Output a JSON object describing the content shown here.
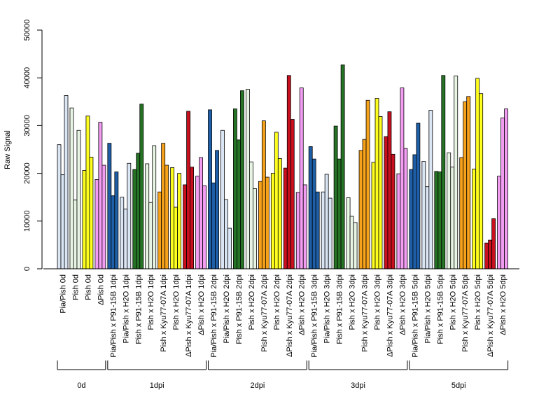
{
  "chart_data": {
    "type": "bar",
    "title": "",
    "xlabel": "",
    "ylabel": "Raw Signal",
    "ylim": [
      0,
      50000
    ],
    "yticks": [
      0,
      10000,
      20000,
      30000,
      40000,
      50000
    ],
    "colors": {
      "Pia/Pish": "#dbe6f5",
      "Pia/Pish x P91-15B": "#1f5fa8",
      "Pia/Pish x H2O": "#dbe6f5",
      "Pish": "#e8f5e4",
      "Pish x P91-15B": "#267326",
      "Pish x H2O": "#e8f5e4",
      "Pish x Kyu77-07A": "#f7a21b",
      "Pish 0d": "#ffff1f",
      "Pish x H2O (yellow)": "#ffff1f",
      "ΔPish x Kyu77-07A": "#c8101e",
      "ΔPish": "#f29cf2"
    },
    "categories": [
      {
        "label": "Pia/Pish 0d",
        "color": "#dbe6f5",
        "values": [
          26000,
          19700,
          36300
        ]
      },
      {
        "label": "Pish 0d",
        "color": "#e8f5e4",
        "values": [
          33700,
          14400,
          29000
        ]
      },
      {
        "label": "Pish 0d",
        "color": "#ffff1f",
        "values": [
          20600,
          32000,
          23400
        ]
      },
      {
        "label": "ΔPish 0d",
        "color": "#f29cf2",
        "values": [
          18700,
          30700,
          21700
        ]
      },
      {
        "label": "Pia/Pish x P91-15B 1dpi",
        "color": "#1f5fa8",
        "values": [
          26300,
          15300,
          20300
        ]
      },
      {
        "label": "Pia/Pish x H2O 1dpi",
        "color": "#dbe6f5",
        "values": [
          15000,
          12500,
          22100
        ]
      },
      {
        "label": "Pish x P91-15B 1dpi",
        "color": "#267326",
        "values": [
          20800,
          24200,
          34500
        ]
      },
      {
        "label": "Pish x H2O 1dpi",
        "color": "#e8f5e4",
        "values": [
          22000,
          13900,
          25800
        ]
      },
      {
        "label": "Pish x Kyu77-07A 1dpi",
        "color": "#f7a21b",
        "values": [
          16100,
          26300,
          21700
        ]
      },
      {
        "label": "Pish x H2O 1dpi",
        "color": "#ffff1f",
        "values": [
          21200,
          12900,
          20000
        ]
      },
      {
        "label": "ΔPish x Kyu77-07A 1dpi",
        "color": "#c8101e",
        "values": [
          17600,
          33000,
          21300
        ]
      },
      {
        "label": "ΔPish x H2O 1dpi",
        "color": "#f29cf2",
        "values": [
          19400,
          23300,
          17400
        ]
      },
      {
        "label": "Pia/Pish x P91-15B 2dpi",
        "color": "#1f5fa8",
        "values": [
          33300,
          18000,
          24800
        ]
      },
      {
        "label": "Pia/Pish x H2O 2dpi",
        "color": "#dbe6f5",
        "values": [
          29000,
          14500,
          8500
        ]
      },
      {
        "label": "Pish x P91-15B 2dpi",
        "color": "#267326",
        "values": [
          33500,
          27000,
          37300
        ]
      },
      {
        "label": "Pish x H2O 2dpi",
        "color": "#e8f5e4",
        "values": [
          37600,
          22400,
          16800
        ]
      },
      {
        "label": "Pish x Kyu77-07A 2dpi",
        "color": "#f7a21b",
        "values": [
          18300,
          31000,
          19200
        ]
      },
      {
        "label": "Pish x H2O 2dpi",
        "color": "#ffff1f",
        "values": [
          20000,
          28600,
          23100
        ]
      },
      {
        "label": "ΔPish x Kyu77-07A 2dpi",
        "color": "#c8101e",
        "values": [
          21100,
          40500,
          31300
        ]
      },
      {
        "label": "ΔPish x H2O 2dpi",
        "color": "#f29cf2",
        "values": [
          16000,
          37900,
          17600
        ]
      },
      {
        "label": "Pia/Pish x P91-15B 3dpi",
        "color": "#1f5fa8",
        "values": [
          25600,
          23000,
          16100
        ]
      },
      {
        "label": "Pia/Pish x H2O 3dpi",
        "color": "#dbe6f5",
        "values": [
          16100,
          19800,
          14800
        ]
      },
      {
        "label": "Pish x P91-15B 3dpi",
        "color": "#267326",
        "values": [
          29900,
          23000,
          42700
        ]
      },
      {
        "label": "Pish x H2O 3dpi",
        "color": "#e8f5e4",
        "values": [
          14900,
          11000,
          9700
        ]
      },
      {
        "label": "Pish x Kyu77-07A 3dpi",
        "color": "#f7a21b",
        "values": [
          24800,
          27100,
          35300
        ]
      },
      {
        "label": "Pish x H2O 3dpi",
        "color": "#ffff1f",
        "values": [
          22300,
          35700,
          31900
        ]
      },
      {
        "label": "ΔPish x Kyu77-07A 3dpi",
        "color": "#c8101e",
        "values": [
          27700,
          32900,
          24000
        ]
      },
      {
        "label": "ΔPish x H2O 3dpi",
        "color": "#f29cf2",
        "values": [
          19900,
          37900,
          25200
        ]
      },
      {
        "label": "Pia/Pish x P91-15B 5dpi",
        "color": "#1f5fa8",
        "values": [
          20800,
          23900,
          30500
        ]
      },
      {
        "label": "Pia/Pish x H2O 5dpi",
        "color": "#dbe6f5",
        "values": [
          22500,
          17200,
          33200
        ]
      },
      {
        "label": "Pish x P91-15B 5dpi",
        "color": "#267326",
        "values": [
          20400,
          20300,
          40500
        ]
      },
      {
        "label": "Pish x H2O 5dpi",
        "color": "#e8f5e4",
        "values": [
          24300,
          21300,
          40400
        ]
      },
      {
        "label": "Pish x Kyu77-07A 5dpi",
        "color": "#f7a21b",
        "values": [
          23300,
          35000,
          36100
        ]
      },
      {
        "label": "Pish x H2O 5dpi",
        "color": "#ffff1f",
        "values": [
          20900,
          39900,
          36700
        ]
      },
      {
        "label": "ΔPish x Kyu77-07A 5dpi",
        "color": "#c8101e",
        "values": [
          5400,
          6000,
          10500
        ]
      },
      {
        "label": "ΔPish x H2O 5dpi",
        "color": "#f29cf2",
        "values": [
          19400,
          31600,
          33500
        ]
      }
    ],
    "groups": [
      {
        "label": "0d",
        "from": 0,
        "to": 3
      },
      {
        "label": "1dpi",
        "from": 4,
        "to": 11
      },
      {
        "label": "2dpi",
        "from": 12,
        "to": 19
      },
      {
        "label": "3dpi",
        "from": 20,
        "to": 27
      },
      {
        "label": "5dpi",
        "from": 28,
        "to": 35
      }
    ],
    "grid": false,
    "legend": "none"
  }
}
